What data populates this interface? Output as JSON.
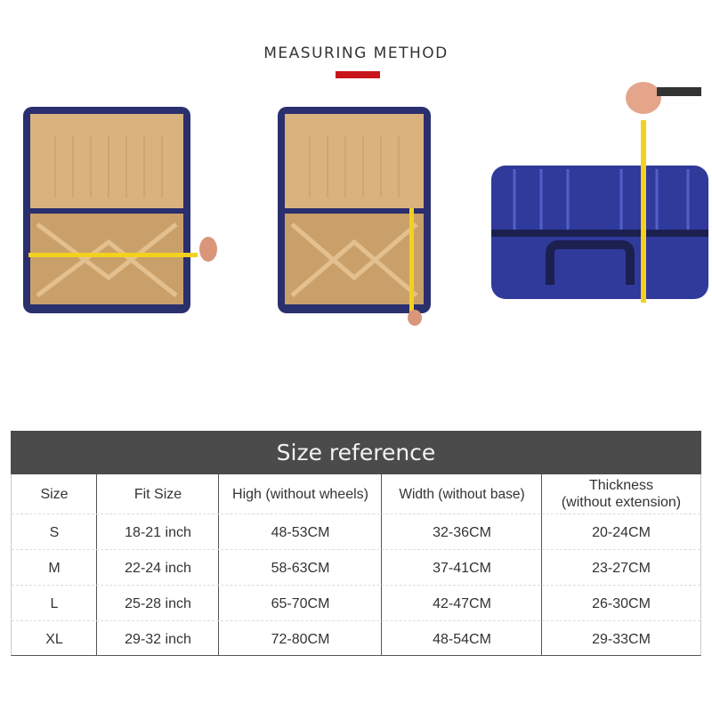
{
  "header": {
    "title": "MEASURING METHOD",
    "accent_color": "#c8151b"
  },
  "photos": [
    {
      "subject": "open-suitcase-width-measure"
    },
    {
      "subject": "open-suitcase-height-measure"
    },
    {
      "subject": "closed-suitcase-thickness-measure"
    }
  ],
  "table": {
    "title": "Size reference",
    "header_color": "#4b4b4b",
    "columns": [
      "Size",
      "Fit Size",
      "High (without wheels)",
      "Width (without base)",
      "Thickness\n(without extension)"
    ],
    "rows": [
      [
        "S",
        "18-21 inch",
        "48-53CM",
        "32-36CM",
        "20-24CM"
      ],
      [
        "M",
        "22-24 inch",
        "58-63CM",
        "37-41CM",
        "23-27CM"
      ],
      [
        "L",
        "25-28 inch",
        "65-70CM",
        "42-47CM",
        "26-30CM"
      ],
      [
        "XL",
        "29-32 inch",
        "72-80CM",
        "48-54CM",
        "29-33CM"
      ]
    ]
  }
}
